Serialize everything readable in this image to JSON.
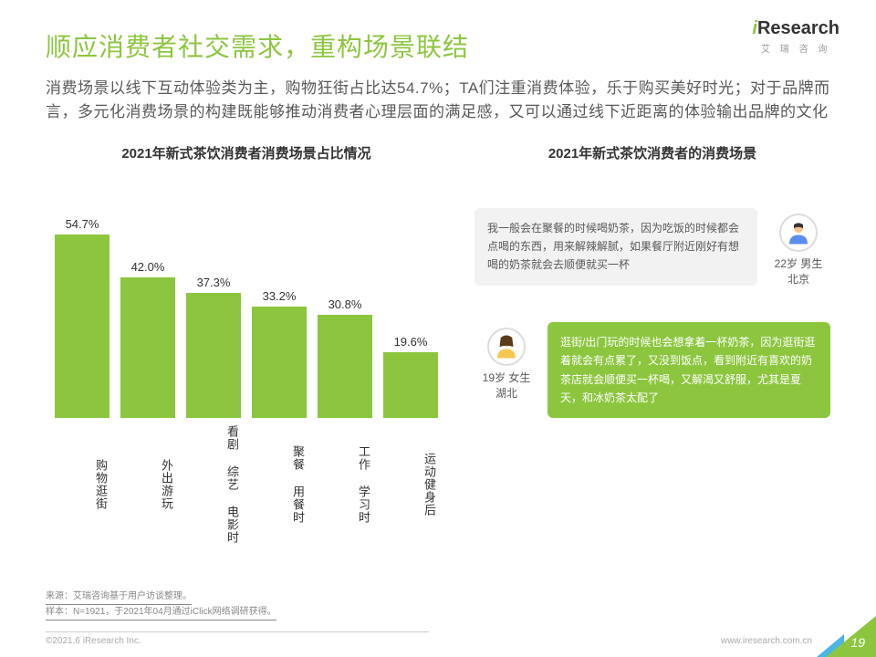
{
  "logo": {
    "main_prefix": "i",
    "main_rest": "Research",
    "sub": "艾 瑞 咨 询"
  },
  "title": {
    "text": "顺应消费者社交需求，重构场景联结",
    "color": "#8cc63f"
  },
  "subtitle": "消费场景以线下互动体验类为主，购物狂街占比达54.7%；TA们注重消费体验，乐于购买美好时光；对于品牌而言，多元化消费场景的构建既能够推动消费者心理层面的满足感，又可以通过线下近距离的体验输出品牌的文化",
  "left_chart": {
    "title": "2021年新式茶饮消费者消费场景占比情况",
    "type": "bar",
    "categories": [
      "购物逛街",
      "外出游玩",
      "看剧 综艺 电影时",
      "聚餐 用餐时",
      "工作 学习时",
      "运动健身后"
    ],
    "values": [
      54.7,
      42.0,
      37.3,
      33.2,
      30.8,
      19.6
    ],
    "value_suffix": "%",
    "bar_color": "#8cc63f",
    "label_color": "#333333",
    "label_fontsize": 13,
    "ylim": [
      0,
      60
    ],
    "bar_width_ratio": 0.7,
    "background_color": "#ffffff"
  },
  "right_section": {
    "title": "2021年新式茶饮消费者的消费场景",
    "personas": [
      {
        "text": "我一般会在聚餐的时候喝奶茶，因为吃饭的时候都会点喝的东西，用来解辣解腻，如果餐厅附近刚好有想喝的奶茶就会去顺便就买一杯",
        "age_gender": "22岁 男生",
        "location": "北京",
        "bubble_bg": "#f2f2f2",
        "bubble_text_color": "#595959",
        "side": "right-avatar"
      },
      {
        "text": "逛街/出门玩的时候也会想拿着一杯奶茶，因为逛街逛着就会有点累了，又没到饭点，看到附近有喜欢的奶茶店就会顺便买一杯喝，又解渴又舒服，尤其是夏天，和冰奶茶太配了",
        "age_gender": "19岁 女生",
        "location": "湖北",
        "bubble_bg": "#8cc63f",
        "bubble_text_color": "#ffffff",
        "side": "left-avatar"
      }
    ]
  },
  "footnotes": [
    "来源：艾瑞咨询基于用户访谈整理。",
    "样本：N=1921，于2021年04月通过iClick网络调研获得。"
  ],
  "footer": {
    "copyright": "©2021.6 iResearch Inc.",
    "url": "www.iresearch.com.cn",
    "page": "19"
  }
}
